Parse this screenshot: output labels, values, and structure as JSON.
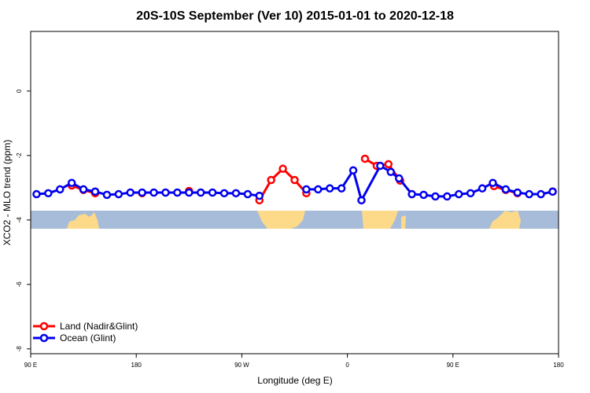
{
  "chart_data": {
    "type": "line",
    "title": "20S-10S September (Ver 10)   2015-01-01 to 2020-12-18",
    "x_label": "Longitude (deg E)",
    "y_label": "XCO2 - MLO trend (ppm)",
    "xlim": [
      90,
      540
    ],
    "ylim": [
      -8.15,
      1.85
    ],
    "xticks": [
      {
        "value": 90,
        "label": "90 E"
      },
      180,
      {
        "value": 270,
        "label": "90 W"
      },
      {
        "value": 360,
        "label": "0"
      },
      {
        "value": 450,
        "label": "90 E"
      },
      {
        "value": 540,
        "label": "180"
      }
    ],
    "yticks": [
      0,
      -2,
      -4,
      -6,
      -8
    ],
    "legend": "bottom-left",
    "series": [
      {
        "name": "Land (Nadir&Glint)",
        "color": "#ff0000",
        "x": [
          125,
          135,
          145,
          155,
          185,
          195,
          225,
          235,
          285,
          295,
          305,
          315,
          325,
          335,
          375,
          385,
          395,
          405,
          415,
          485,
          495,
          505,
          515,
          535
        ],
        "values": [
          -2.93,
          -3.07,
          -3.17,
          null,
          -3.17,
          null,
          -3.1,
          null,
          -3.39,
          -2.76,
          -2.41,
          -2.76,
          -3.17,
          null,
          -2.1,
          -2.32,
          -2.27,
          -2.78,
          null,
          -2.95,
          -3.07,
          -3.17,
          null,
          -3.12
        ]
      },
      {
        "name": "Ocean (Glint)",
        "color": "#0000ee",
        "x": [
          95,
          105,
          115,
          125,
          135,
          145,
          155,
          165,
          175,
          185,
          195,
          205,
          215,
          225,
          235,
          245,
          255,
          265,
          275,
          285,
          305,
          325,
          335,
          345,
          355,
          365,
          372,
          388,
          397,
          404,
          415,
          425,
          435,
          445,
          455,
          465,
          475,
          484,
          495,
          505,
          515,
          525,
          535
        ],
        "values": [
          -3.2,
          -3.17,
          -3.05,
          -2.85,
          -3.05,
          -3.12,
          -3.22,
          -3.2,
          -3.15,
          -3.15,
          -3.15,
          -3.15,
          -3.15,
          -3.15,
          -3.15,
          -3.15,
          -3.17,
          -3.17,
          -3.2,
          -3.25,
          null,
          -3.05,
          -3.05,
          -3.02,
          -3.02,
          -2.46,
          -3.39,
          -2.32,
          -2.51,
          -2.71,
          -3.2,
          -3.22,
          -3.27,
          -3.27,
          -3.2,
          -3.17,
          -3.02,
          -2.85,
          -3.05,
          -3.15,
          -3.2,
          -3.2,
          -3.12
        ]
      }
    ]
  }
}
